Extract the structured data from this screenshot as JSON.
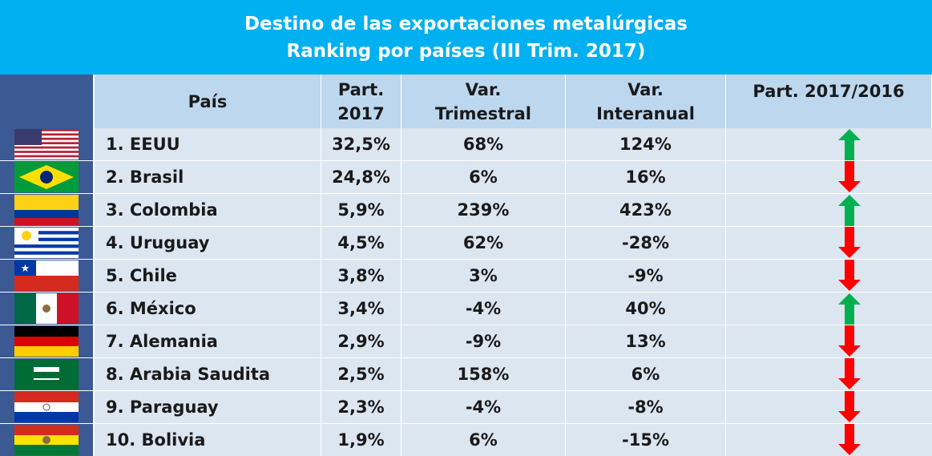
{
  "header": {
    "title": "Destino de las exportaciones metalúrgicas",
    "subtitle": "Ranking por países (III Trim. 2017)"
  },
  "table": {
    "columns": [
      "País",
      "Part. 2017",
      "Var. Trimestral",
      "Var. Interanual",
      "Part. 2017/2016"
    ],
    "rows": [
      {
        "pais": "1. EEUU",
        "part": "32,5%",
        "trim": "68%",
        "inter": "124%",
        "trend": "up"
      },
      {
        "pais": "2. Brasil",
        "part": "24,8%",
        "trim": "6%",
        "inter": "16%",
        "trend": "down"
      },
      {
        "pais": "3. Colombia",
        "part": "5,9%",
        "trim": "239%",
        "inter": "423%",
        "trend": "up"
      },
      {
        "pais": "4. Uruguay",
        "part": "4,5%",
        "trim": "62%",
        "inter": "-28%",
        "trend": "down"
      },
      {
        "pais": "5. Chile",
        "part": "3,8%",
        "trim": "3%",
        "inter": "-9%",
        "trend": "down"
      },
      {
        "pais": "6. México",
        "part": "3,4%",
        "trim": "-4%",
        "inter": "40%",
        "trend": "up"
      },
      {
        "pais": "7. Alemania",
        "part": "2,9%",
        "trim": "-9%",
        "inter": "13%",
        "trend": "down"
      },
      {
        "pais": "8. Arabia Saudita",
        "part": "2,5%",
        "trim": "158%",
        "inter": "6%",
        "trend": "down"
      },
      {
        "pais": "9. Paraguay",
        "part": "2,3%",
        "trim": "-4%",
        "inter": "-8%",
        "trend": "down"
      },
      {
        "pais": "10. Bolivia",
        "part": "1,9%",
        "trim": "6%",
        "inter": "-15%",
        "trend": "down"
      }
    ]
  }
}
